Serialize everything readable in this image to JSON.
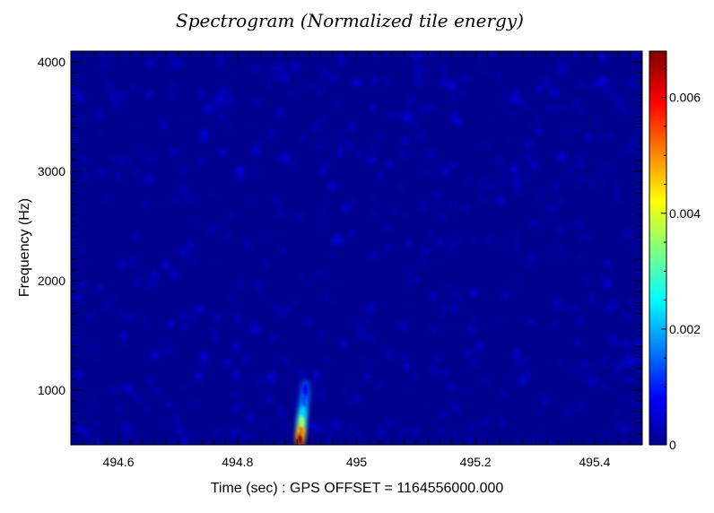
{
  "chart_data": {
    "type": "heatmap",
    "title": "Spectrogram (Normalized tile energy)",
    "xlabel": "Time (sec) : GPS OFFSET = 1164556000.000",
    "ylabel": "Frequency (Hz)",
    "xlim": [
      494.52,
      495.48
    ],
    "ylim": [
      500,
      4100
    ],
    "x_ticks": [
      494.6,
      494.8,
      495.0,
      495.2,
      495.4
    ],
    "x_tick_labels": [
      "494.6",
      "494.8",
      "495",
      "495.2",
      "495.4"
    ],
    "y_ticks": [
      1000,
      2000,
      3000,
      4000
    ],
    "y_tick_labels": [
      "1000",
      "2000",
      "3000",
      "4000"
    ],
    "colorbar": {
      "range": [
        0,
        0.0068
      ],
      "ticks": [
        0,
        0.002,
        0.004,
        0.006
      ],
      "tick_labels": [
        "0",
        "0.002",
        "0.004",
        "0.006"
      ],
      "colormap": "jet"
    },
    "background_level": 0.0002,
    "features": [
      {
        "time": 494.905,
        "freq": 560,
        "energy": 0.0068
      },
      {
        "time": 494.907,
        "freq": 640,
        "energy": 0.0052
      },
      {
        "time": 494.908,
        "freq": 720,
        "energy": 0.0036
      },
      {
        "time": 494.91,
        "freq": 800,
        "energy": 0.0022
      },
      {
        "time": 494.912,
        "freq": 900,
        "energy": 0.0013
      },
      {
        "time": 494.914,
        "freq": 1000,
        "energy": 0.0007
      }
    ]
  }
}
